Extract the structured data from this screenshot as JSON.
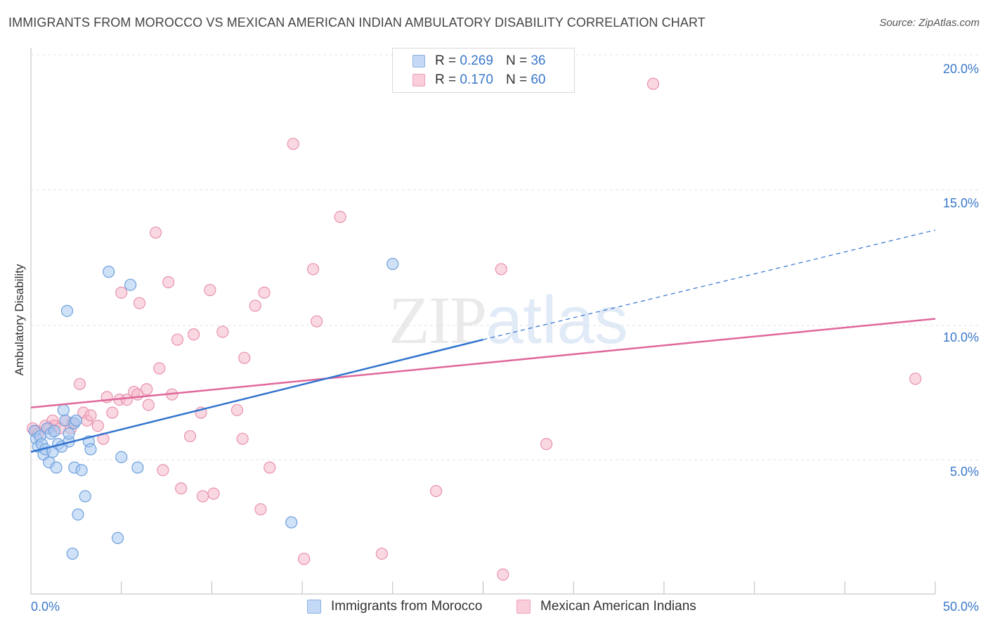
{
  "title": "IMMIGRANTS FROM MOROCCO VS MEXICAN AMERICAN INDIAN AMBULATORY DISABILITY CORRELATION CHART",
  "source": "Source: ZipAtlas.com",
  "watermark": {
    "zip": "ZIP",
    "atlas": "atlas"
  },
  "legend": {
    "rows": [
      {
        "r_label": "R =",
        "r_value": "0.269",
        "n_label": "N =",
        "n_value": "36",
        "color": "#a8c8f0"
      },
      {
        "r_label": "R =",
        "r_value": "0.170",
        "n_label": "N =",
        "n_value": "60",
        "color": "#f5b8cb"
      }
    ]
  },
  "chart_data": {
    "type": "scatter",
    "title": "IMMIGRANTS FROM MOROCCO VS MEXICAN AMERICAN INDIAN AMBULATORY DISABILITY CORRELATION CHART",
    "xlabel": "",
    "ylabel": "Ambulatory Disability",
    "xlim": [
      0,
      50
    ],
    "ylim": [
      0,
      21
    ],
    "x_tick_labels": [
      "0.0%",
      "50.0%"
    ],
    "y_ticks": [
      5,
      10,
      15,
      20
    ],
    "y_tick_labels": [
      "5.0%",
      "10.0%",
      "15.0%",
      "20.0%"
    ],
    "grid": true,
    "legend_position": "top-center",
    "series": [
      {
        "name": "Immigrants from Morocco",
        "color": "#6ea0dc",
        "fill": "#a8c8f0",
        "trend": {
          "x": [
            0,
            25
          ],
          "y": [
            5.3,
            9.6
          ],
          "dashed_extension": {
            "x": [
              25,
              50
            ],
            "y": [
              9.6,
              13.8
            ]
          },
          "color": "#2f72cf"
        },
        "points": [
          [
            0.2,
            6.1
          ],
          [
            0.3,
            5.8
          ],
          [
            0.4,
            5.5
          ],
          [
            0.5,
            5.9
          ],
          [
            0.6,
            5.6
          ],
          [
            0.7,
            5.2
          ],
          [
            0.8,
            5.4
          ],
          [
            0.9,
            6.2
          ],
          [
            1.0,
            4.9
          ],
          [
            1.1,
            6.0
          ],
          [
            1.2,
            5.3
          ],
          [
            1.4,
            4.7
          ],
          [
            1.5,
            5.6
          ],
          [
            1.7,
            5.5
          ],
          [
            1.8,
            6.9
          ],
          [
            1.9,
            6.5
          ],
          [
            2.0,
            10.7
          ],
          [
            2.1,
            5.7
          ],
          [
            2.1,
            6.0
          ],
          [
            2.3,
            1.4
          ],
          [
            2.4,
            4.7
          ],
          [
            2.4,
            6.4
          ],
          [
            2.5,
            6.5
          ],
          [
            2.6,
            2.9
          ],
          [
            2.8,
            4.6
          ],
          [
            3.0,
            3.6
          ],
          [
            3.2,
            5.7
          ],
          [
            3.3,
            5.4
          ],
          [
            4.3,
            12.2
          ],
          [
            4.8,
            2.0
          ],
          [
            5.0,
            5.1
          ],
          [
            5.5,
            11.7
          ],
          [
            5.9,
            4.7
          ],
          [
            14.4,
            2.6
          ],
          [
            20.0,
            12.5
          ],
          [
            1.3,
            6.1
          ]
        ]
      },
      {
        "name": "Mexican American Indians",
        "color": "#e891ad",
        "fill": "#f5b8cb",
        "trend": {
          "x": [
            0,
            50
          ],
          "y": [
            7.0,
            10.4
          ],
          "color": "#e0679a"
        },
        "points": [
          [
            0.1,
            6.2
          ],
          [
            0.3,
            6.1
          ],
          [
            0.8,
            6.3
          ],
          [
            1.2,
            6.5
          ],
          [
            1.3,
            6.3
          ],
          [
            1.6,
            6.2
          ],
          [
            1.9,
            6.5
          ],
          [
            2.3,
            6.4
          ],
          [
            2.7,
            7.9
          ],
          [
            2.9,
            6.8
          ],
          [
            3.1,
            6.5
          ],
          [
            3.3,
            6.7
          ],
          [
            3.7,
            6.3
          ],
          [
            4.0,
            5.8
          ],
          [
            4.2,
            7.4
          ],
          [
            4.5,
            6.8
          ],
          [
            4.9,
            7.3
          ],
          [
            5.0,
            11.4
          ],
          [
            5.3,
            7.3
          ],
          [
            5.7,
            7.6
          ],
          [
            5.9,
            7.5
          ],
          [
            6.0,
            11.0
          ],
          [
            6.4,
            7.7
          ],
          [
            6.5,
            7.1
          ],
          [
            6.9,
            13.7
          ],
          [
            7.1,
            8.5
          ],
          [
            7.3,
            4.6
          ],
          [
            7.6,
            11.8
          ],
          [
            7.8,
            7.5
          ],
          [
            8.1,
            9.6
          ],
          [
            8.3,
            3.9
          ],
          [
            8.8,
            5.9
          ],
          [
            9.0,
            9.8
          ],
          [
            9.4,
            6.8
          ],
          [
            9.5,
            3.6
          ],
          [
            9.9,
            11.5
          ],
          [
            10.1,
            3.7
          ],
          [
            10.6,
            9.9
          ],
          [
            11.4,
            6.9
          ],
          [
            11.7,
            5.8
          ],
          [
            11.8,
            8.9
          ],
          [
            12.4,
            10.9
          ],
          [
            12.7,
            3.1
          ],
          [
            12.9,
            11.4
          ],
          [
            13.2,
            4.7
          ],
          [
            14.5,
            17.1
          ],
          [
            15.1,
            1.2
          ],
          [
            15.6,
            12.3
          ],
          [
            15.8,
            10.3
          ],
          [
            17.1,
            14.3
          ],
          [
            19.4,
            1.4
          ],
          [
            22.4,
            3.8
          ],
          [
            26.0,
            12.3
          ],
          [
            26.1,
            0.6
          ],
          [
            28.5,
            5.6
          ],
          [
            34.4,
            19.4
          ],
          [
            48.9,
            8.1
          ],
          [
            0.4,
            6.0
          ],
          [
            1.0,
            6.2
          ],
          [
            2.2,
            6.2
          ]
        ]
      }
    ]
  }
}
